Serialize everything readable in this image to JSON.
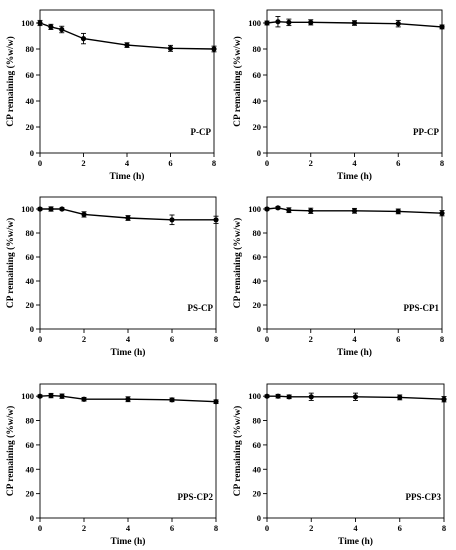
{
  "chart_data": [
    {
      "type": "line",
      "label": "P-CP",
      "xlabel": "Time (h)",
      "ylabel": "CP remaining (%w/w)",
      "xlim": [
        0,
        8
      ],
      "ylim": [
        0,
        110
      ],
      "xticks": [
        0,
        2,
        4,
        6,
        8
      ],
      "yticks": [
        0,
        20,
        40,
        60,
        80,
        100
      ],
      "x": [
        0,
        0.5,
        1,
        2,
        4,
        6,
        8
      ],
      "y": [
        100,
        97,
        95,
        88,
        83,
        80.5,
        80
      ],
      "error": [
        2,
        2,
        2.5,
        4,
        1.8,
        2.3,
        2.2
      ]
    },
    {
      "type": "line",
      "label": "PP-CP",
      "xlabel": "Time (h)",
      "ylabel": "CP remaining (%w/w)",
      "xlim": [
        0,
        8
      ],
      "ylim": [
        0,
        110
      ],
      "xticks": [
        0,
        2,
        4,
        6,
        8
      ],
      "yticks": [
        0,
        20,
        40,
        60,
        80,
        100
      ],
      "x": [
        0,
        0.5,
        1,
        2,
        4,
        6,
        8
      ],
      "y": [
        100,
        101,
        100.5,
        100.5,
        100,
        99.5,
        97
      ],
      "error": [
        1.5,
        4,
        2.5,
        2,
        1.8,
        2.5,
        1.5
      ]
    },
    {
      "type": "line",
      "label": "PS-CP",
      "xlabel": "Time (h)",
      "ylabel": "CP remaining (%w/w)",
      "xlim": [
        0,
        8
      ],
      "ylim": [
        0,
        110
      ],
      "xticks": [
        0,
        2,
        4,
        6,
        8
      ],
      "yticks": [
        0,
        20,
        40,
        60,
        80,
        100
      ],
      "x": [
        0,
        0.5,
        1,
        2,
        4,
        6,
        8
      ],
      "y": [
        100,
        100,
        100,
        95.5,
        92.5,
        91,
        91
      ],
      "error": [
        1,
        1.8,
        1,
        2.2,
        2,
        4,
        3
      ]
    },
    {
      "type": "line",
      "label": "PPS-CP1",
      "xlabel": "Time (h)",
      "ylabel": "CP remaining (%w/w)",
      "xlim": [
        0,
        8
      ],
      "ylim": [
        0,
        110
      ],
      "xticks": [
        0,
        2,
        4,
        6,
        8
      ],
      "yticks": [
        0,
        20,
        40,
        60,
        80,
        100
      ],
      "x": [
        0,
        0.5,
        1,
        2,
        4,
        6,
        8
      ],
      "y": [
        100,
        101,
        99,
        98.5,
        98.5,
        98,
        96.5
      ],
      "error": [
        1,
        1,
        2,
        2.2,
        2,
        2,
        2.2
      ]
    },
    {
      "type": "line",
      "label": "PPS-CP2",
      "xlabel": "Time (h)",
      "ylabel": "CP remaining (%w/w)",
      "xlim": [
        0,
        8
      ],
      "ylim": [
        0,
        110
      ],
      "xticks": [
        0,
        2,
        4,
        6,
        8
      ],
      "yticks": [
        0,
        20,
        40,
        60,
        80,
        100
      ],
      "x": [
        0,
        0.5,
        1,
        2,
        4,
        6,
        8
      ],
      "y": [
        100,
        100.5,
        100,
        97.5,
        97.5,
        97,
        95.5
      ],
      "error": [
        1,
        1.8,
        1.8,
        1.5,
        2,
        1.5,
        1.5
      ]
    },
    {
      "type": "line",
      "label": "PPS-CP3",
      "xlabel": "Time (h)",
      "ylabel": "CP remaining (%w/w)",
      "xlim": [
        0,
        8
      ],
      "ylim": [
        0,
        110
      ],
      "xticks": [
        0,
        2,
        4,
        6,
        8
      ],
      "yticks": [
        0,
        20,
        40,
        60,
        80,
        100
      ],
      "x": [
        0,
        0.5,
        1,
        2,
        4,
        6,
        8
      ],
      "y": [
        100,
        100,
        99.5,
        99.5,
        99.5,
        99,
        97.5
      ],
      "error": [
        1,
        1.5,
        1.5,
        3,
        3,
        2,
        2.2
      ]
    }
  ]
}
